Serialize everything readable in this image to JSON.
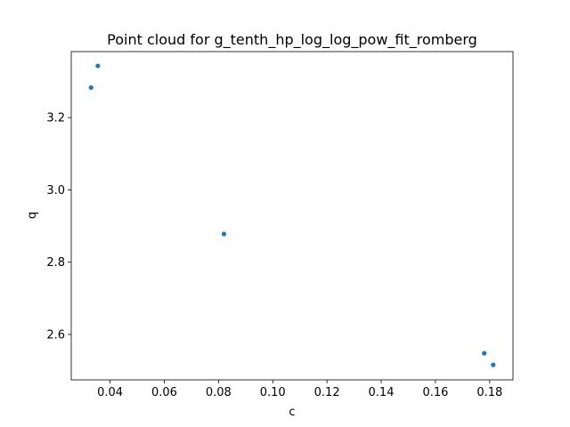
{
  "chart_data": {
    "type": "scatter",
    "title": "Point cloud for g_tenth_hp_log_log_pow_fit_romberg",
    "xlabel": "c",
    "ylabel": "q",
    "xlim": [
      0.0257,
      0.1886
    ],
    "ylim": [
      2.4745,
      3.3825
    ],
    "x_ticks": [
      0.04,
      0.06,
      0.08,
      0.1,
      0.12,
      0.14,
      0.16,
      0.18
    ],
    "x_tick_labels": [
      "0.04",
      "0.06",
      "0.08",
      "0.10",
      "0.12",
      "0.14",
      "0.16",
      "0.18"
    ],
    "y_ticks": [
      2.6,
      2.8,
      3.0,
      3.2
    ],
    "y_tick_labels": [
      "2.6",
      "2.8",
      "3.0",
      "3.2"
    ],
    "grid": false,
    "marker_color": "#1f77b4",
    "points": [
      {
        "x": 0.033,
        "y": 3.283
      },
      {
        "x": 0.0355,
        "y": 3.343
      },
      {
        "x": 0.082,
        "y": 2.878
      },
      {
        "x": 0.178,
        "y": 2.548
      },
      {
        "x": 0.1813,
        "y": 2.516
      }
    ]
  }
}
